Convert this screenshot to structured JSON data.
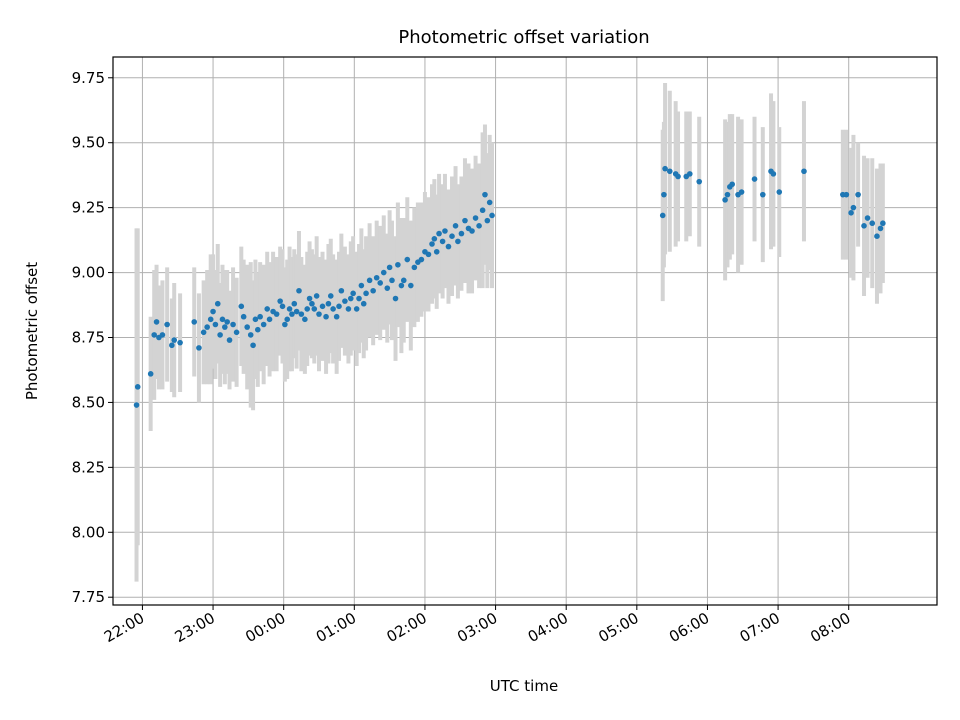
{
  "chart_data": {
    "type": "scatter",
    "title": "Photometric offset variation",
    "xlabel": "UTC time",
    "ylabel": "Photometric offset",
    "x_unit": "UTC time (HH:MM), night starting 21:00",
    "xlim": [
      "21:35",
      "09:15"
    ],
    "ylim": [
      7.72,
      9.83
    ],
    "x_ticks": [
      "22:00",
      "23:00",
      "00:00",
      "01:00",
      "02:00",
      "03:00",
      "04:00",
      "05:00",
      "06:00",
      "07:00",
      "08:00"
    ],
    "y_ticks": [
      "7.75",
      "8.00",
      "8.25",
      "8.50",
      "8.75",
      "9.00",
      "9.25",
      "9.50",
      "9.75"
    ],
    "grid": true,
    "marker_color": "#1f77b4",
    "errorbar_color": "#d3d3d3",
    "note_on_points": "Each point: [time, offset, error bar half-height].",
    "points": [
      [
        "21:55",
        8.49,
        0.68
      ],
      [
        "21:56",
        8.56,
        0.61
      ],
      [
        "22:07",
        8.61,
        0.22
      ],
      [
        "22:10",
        8.76,
        0.25
      ],
      [
        "22:12",
        8.81,
        0.22
      ],
      [
        "22:14",
        8.75,
        0.2
      ],
      [
        "22:17",
        8.76,
        0.21
      ],
      [
        "22:21",
        8.8,
        0.22
      ],
      [
        "22:25",
        8.72,
        0.18
      ],
      [
        "22:27",
        8.74,
        0.22
      ],
      [
        "22:32",
        8.73,
        0.19
      ],
      [
        "22:44",
        8.81,
        0.21
      ],
      [
        "22:48",
        8.71,
        0.21
      ],
      [
        "22:52",
        8.77,
        0.2
      ],
      [
        "22:55",
        8.79,
        0.22
      ],
      [
        "22:58",
        8.82,
        0.25
      ],
      [
        "23:00",
        8.85,
        0.22
      ],
      [
        "23:02",
        8.8,
        0.21
      ],
      [
        "23:04",
        8.88,
        0.23
      ],
      [
        "23:06",
        8.76,
        0.2
      ],
      [
        "23:08",
        8.82,
        0.21
      ],
      [
        "23:10",
        8.79,
        0.22
      ],
      [
        "23:12",
        8.81,
        0.2
      ],
      [
        "23:14",
        8.74,
        0.19
      ],
      [
        "23:17",
        8.8,
        0.22
      ],
      [
        "23:20",
        8.77,
        0.21
      ],
      [
        "23:24",
        8.87,
        0.23
      ],
      [
        "23:26",
        8.83,
        0.22
      ],
      [
        "23:29",
        8.79,
        0.24
      ],
      [
        "23:32",
        8.76,
        0.28
      ],
      [
        "23:34",
        8.72,
        0.25
      ],
      [
        "23:36",
        8.82,
        0.23
      ],
      [
        "23:38",
        8.78,
        0.22
      ],
      [
        "23:40",
        8.83,
        0.21
      ],
      [
        "23:43",
        8.8,
        0.23
      ],
      [
        "23:46",
        8.86,
        0.22
      ],
      [
        "23:48",
        8.82,
        0.22
      ],
      [
        "23:51",
        8.85,
        0.23
      ],
      [
        "23:54",
        8.84,
        0.22
      ],
      [
        "23:57",
        8.89,
        0.21
      ],
      [
        "23:59",
        8.87,
        0.22
      ],
      [
        "00:01",
        8.8,
        0.22
      ],
      [
        "00:03",
        8.82,
        0.23
      ],
      [
        "00:05",
        8.86,
        0.24
      ],
      [
        "00:07",
        8.84,
        0.22
      ],
      [
        "00:09",
        8.88,
        0.21
      ],
      [
        "00:11",
        8.85,
        0.22
      ],
      [
        "00:13",
        8.93,
        0.23
      ],
      [
        "00:15",
        8.84,
        0.22
      ],
      [
        "00:18",
        8.82,
        0.21
      ],
      [
        "00:20",
        8.86,
        0.22
      ],
      [
        "00:22",
        8.9,
        0.22
      ],
      [
        "00:24",
        8.88,
        0.21
      ],
      [
        "00:26",
        8.86,
        0.21
      ],
      [
        "00:28",
        8.91,
        0.23
      ],
      [
        "00:30",
        8.84,
        0.22
      ],
      [
        "00:33",
        8.87,
        0.21
      ],
      [
        "00:36",
        8.83,
        0.22
      ],
      [
        "00:38",
        8.88,
        0.23
      ],
      [
        "00:40",
        8.91,
        0.22
      ],
      [
        "00:42",
        8.86,
        0.21
      ],
      [
        "00:45",
        8.83,
        0.22
      ],
      [
        "00:47",
        8.87,
        0.21
      ],
      [
        "00:49",
        8.93,
        0.22
      ],
      [
        "00:52",
        8.89,
        0.21
      ],
      [
        "00:55",
        8.86,
        0.21
      ],
      [
        "00:57",
        8.9,
        0.22
      ],
      [
        "00:59",
        8.92,
        0.22
      ],
      [
        "01:02",
        8.86,
        0.22
      ],
      [
        "01:04",
        8.9,
        0.21
      ],
      [
        "01:06",
        8.95,
        0.22
      ],
      [
        "01:08",
        8.88,
        0.21
      ],
      [
        "01:10",
        8.92,
        0.22
      ],
      [
        "01:13",
        8.97,
        0.22
      ],
      [
        "01:16",
        8.93,
        0.21
      ],
      [
        "01:19",
        8.98,
        0.22
      ],
      [
        "01:22",
        8.96,
        0.22
      ],
      [
        "01:25",
        9.0,
        0.22
      ],
      [
        "01:28",
        8.94,
        0.21
      ],
      [
        "01:30",
        9.02,
        0.22
      ],
      [
        "01:32",
        8.97,
        0.23
      ],
      [
        "01:35",
        8.9,
        0.24
      ],
      [
        "01:37",
        9.03,
        0.24
      ],
      [
        "01:40",
        8.95,
        0.26
      ],
      [
        "01:42",
        8.97,
        0.24
      ],
      [
        "01:45",
        9.05,
        0.24
      ],
      [
        "01:48",
        8.95,
        0.25
      ],
      [
        "01:51",
        9.02,
        0.23
      ],
      [
        "01:54",
        9.04,
        0.23
      ],
      [
        "01:57",
        9.05,
        0.22
      ],
      [
        "02:00",
        9.08,
        0.23
      ],
      [
        "02:03",
        9.07,
        0.22
      ],
      [
        "02:06",
        9.11,
        0.23
      ],
      [
        "02:08",
        9.13,
        0.23
      ],
      [
        "02:10",
        9.08,
        0.22
      ],
      [
        "02:12",
        9.15,
        0.23
      ],
      [
        "02:15",
        9.12,
        0.22
      ],
      [
        "02:17",
        9.16,
        0.22
      ],
      [
        "02:20",
        9.1,
        0.22
      ],
      [
        "02:23",
        9.14,
        0.23
      ],
      [
        "02:26",
        9.18,
        0.23
      ],
      [
        "02:28",
        9.12,
        0.22
      ],
      [
        "02:31",
        9.15,
        0.22
      ],
      [
        "02:34",
        9.2,
        0.24
      ],
      [
        "02:37",
        9.17,
        0.25
      ],
      [
        "02:40",
        9.16,
        0.24
      ],
      [
        "02:43",
        9.21,
        0.24
      ],
      [
        "02:46",
        9.18,
        0.24
      ],
      [
        "02:49",
        9.24,
        0.3
      ],
      [
        "02:51",
        9.3,
        0.27
      ],
      [
        "02:53",
        9.2,
        0.26
      ],
      [
        "02:55",
        9.27,
        0.26
      ],
      [
        "02:57",
        9.22,
        0.28
      ],
      [
        "05:22",
        9.22,
        0.33
      ],
      [
        "05:23",
        9.3,
        0.28
      ],
      [
        "05:24",
        9.4,
        0.33
      ],
      [
        "05:28",
        9.39,
        0.31
      ],
      [
        "05:33",
        9.38,
        0.28
      ],
      [
        "05:35",
        9.37,
        0.25
      ],
      [
        "05:42",
        9.37,
        0.25
      ],
      [
        "05:45",
        9.38,
        0.24
      ],
      [
        "05:53",
        9.35,
        0.25
      ],
      [
        "06:15",
        9.28,
        0.31
      ],
      [
        "06:17",
        9.3,
        0.28
      ],
      [
        "06:19",
        9.33,
        0.28
      ],
      [
        "06:21",
        9.34,
        0.27
      ],
      [
        "06:26",
        9.3,
        0.3
      ],
      [
        "06:29",
        9.31,
        0.28
      ],
      [
        "06:40",
        9.36,
        0.24
      ],
      [
        "06:47",
        9.3,
        0.26
      ],
      [
        "06:54",
        9.39,
        0.3
      ],
      [
        "06:56",
        9.38,
        0.28
      ],
      [
        "07:01",
        9.31,
        0.25
      ],
      [
        "07:22",
        9.39,
        0.27
      ],
      [
        "07:55",
        9.3,
        0.25
      ],
      [
        "07:58",
        9.3,
        0.25
      ],
      [
        "08:02",
        9.23,
        0.25
      ],
      [
        "08:04",
        9.25,
        0.28
      ],
      [
        "08:08",
        9.3,
        0.2
      ],
      [
        "08:13",
        9.18,
        0.27
      ],
      [
        "08:16",
        9.21,
        0.23
      ],
      [
        "08:20",
        9.19,
        0.25
      ],
      [
        "08:24",
        9.14,
        0.26
      ],
      [
        "08:27",
        9.17,
        0.25
      ],
      [
        "08:29",
        9.19,
        0.23
      ]
    ]
  }
}
